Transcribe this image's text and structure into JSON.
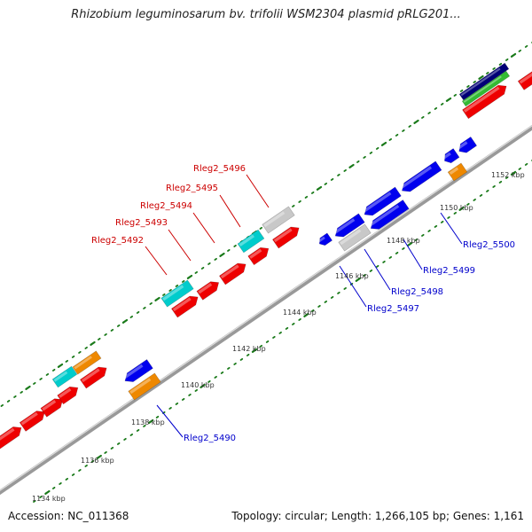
{
  "title": "Rhizobium leguminosarum bv. trifolii WSM2304 plasmid pRLG201...",
  "footer": {
    "accession": "Accession: NC_011368",
    "summary": "Topology: circular; Length: 1,266,105 bp; Genes: 1,161"
  },
  "colors": {
    "red": "#ee0000",
    "blue": "#0000ee",
    "cyan": "#00cccc",
    "orange": "#ee8800",
    "gray": "#c8c8c8",
    "green": "#33bb33",
    "navy": "#000077",
    "backbone": "#999999",
    "dots": "#1a7a1a",
    "label_red": "#cc0000",
    "label_blue": "#0000cc"
  },
  "kbp_ticks": [
    {
      "label": "1134 kbp"
    },
    {
      "label": "1136 kbp"
    },
    {
      "label": "1138 kbp"
    },
    {
      "label": "1140 kbp"
    },
    {
      "label": "1142 kbp"
    },
    {
      "label": "1144 kbp"
    },
    {
      "label": "1146 kbp"
    },
    {
      "label": "1148 kbp"
    },
    {
      "label": "1150 kbp"
    },
    {
      "label": "1152 kbp"
    }
  ],
  "gene_labels_red": [
    {
      "name": "Rleg2_5492"
    },
    {
      "name": "Rleg2_5493"
    },
    {
      "name": "Rleg2_5494"
    },
    {
      "name": "Rleg2_5495"
    },
    {
      "name": "Rleg2_5496"
    }
  ],
  "gene_labels_blue": [
    {
      "name": "Rleg2_5490"
    },
    {
      "name": "Rleg2_5497"
    },
    {
      "name": "Rleg2_5498"
    },
    {
      "name": "Rleg2_5499"
    },
    {
      "name": "Rleg2_5500"
    }
  ]
}
